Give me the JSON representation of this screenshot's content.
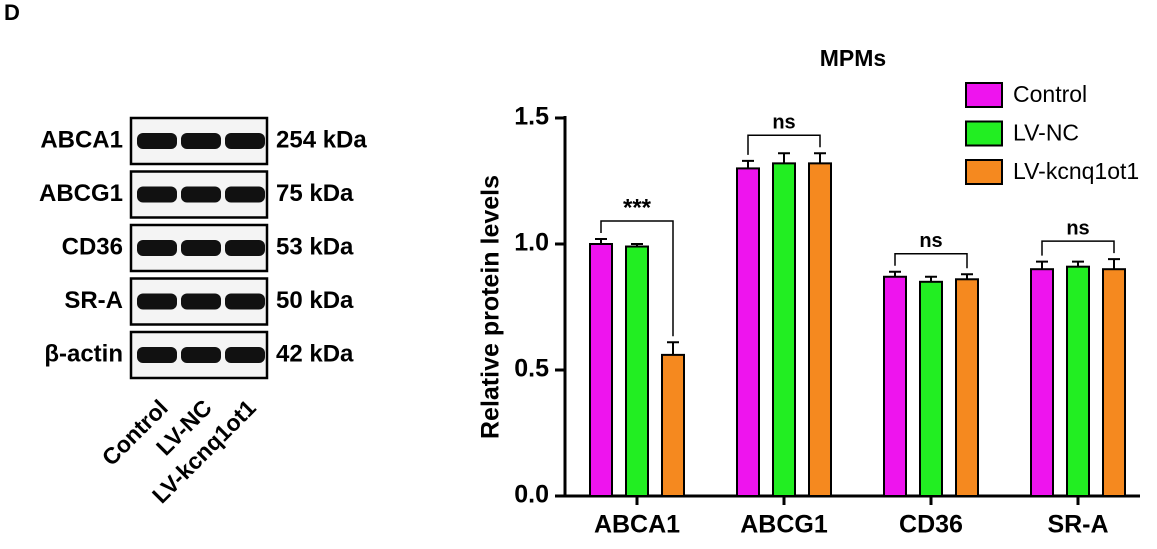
{
  "panel_label": "D",
  "blot": {
    "proteins": [
      {
        "name": "ABCA1",
        "size": "254 kDa"
      },
      {
        "name": "ABCG1",
        "size": "75 kDa"
      },
      {
        "name": "CD36",
        "size": "53 kDa"
      },
      {
        "name": "SR-A",
        "size": "50 kDa"
      },
      {
        "name": "β-actin",
        "size": "42 kDa"
      }
    ],
    "lanes": [
      "Control",
      "LV-NC",
      "LV-kcnq1ot1"
    ]
  },
  "chart_data": {
    "type": "bar",
    "title": "MPMs",
    "y_label": "Relative protein levels",
    "categories": [
      "ABCA1",
      "ABCG1",
      "CD36",
      "SR-A"
    ],
    "series": [
      {
        "name": "Control",
        "color": "#ee14ee",
        "values": [
          1.0,
          1.3,
          0.87,
          0.9
        ],
        "errors": [
          0.02,
          0.03,
          0.02,
          0.03
        ]
      },
      {
        "name": "LV-NC",
        "color": "#22ee22",
        "values": [
          0.99,
          1.32,
          0.85,
          0.91
        ],
        "errors": [
          0.01,
          0.04,
          0.02,
          0.02
        ]
      },
      {
        "name": "LV-kcnq1ot1",
        "color": "#f5891f",
        "values": [
          0.56,
          1.32,
          0.86,
          0.9
        ],
        "errors": [
          0.05,
          0.04,
          0.02,
          0.04
        ]
      }
    ],
    "significance": [
      "***",
      "ns",
      "ns",
      "ns"
    ],
    "ylim": [
      0,
      1.5
    ],
    "yticks": [
      {
        "value": 0,
        "label": "0.0"
      },
      0.5,
      {
        "value": 1,
        "label": "1.0"
      },
      1.5
    ],
    "legend": "top-right"
  }
}
